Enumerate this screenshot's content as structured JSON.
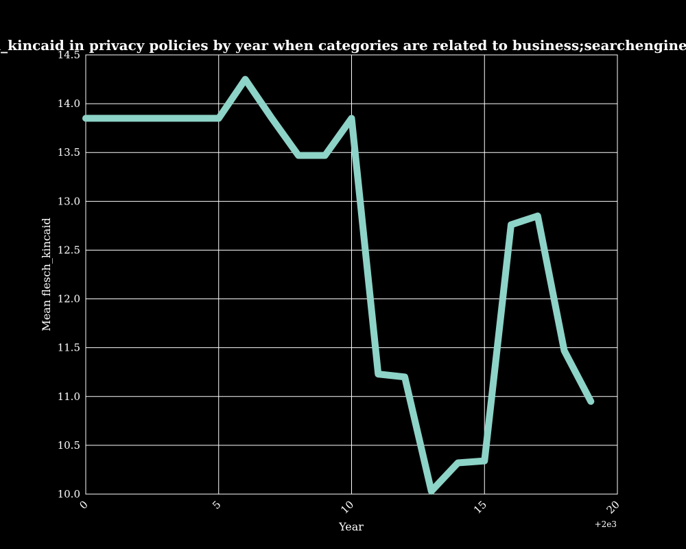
{
  "chart_data": {
    "type": "line",
    "title": "Mean flesch_kincaid in privacy policies by year when categories are related to business;searchenginesandportals",
    "xlabel": "Year",
    "ylabel": "Mean flesch_kincaid",
    "x_offset_label": "+2e3",
    "xlim": [
      0,
      20
    ],
    "ylim": [
      10.0,
      14.5
    ],
    "xticks": [
      "0",
      "5",
      "10",
      "15",
      "20"
    ],
    "yticks": [
      "10.0",
      "10.5",
      "11.0",
      "11.5",
      "12.0",
      "12.5",
      "13.0",
      "13.5",
      "14.0",
      "14.5"
    ],
    "grid": true,
    "series": [
      {
        "color": "#8dd3c7",
        "x": [
          0,
          1,
          2,
          3,
          4,
          5,
          6,
          7,
          8,
          9,
          10,
          11,
          12,
          13,
          14,
          15,
          16,
          17,
          18,
          19
        ],
        "values": [
          13.85,
          13.85,
          13.85,
          13.85,
          13.85,
          13.85,
          14.25,
          13.85,
          13.47,
          13.47,
          13.85,
          11.23,
          11.2,
          10.03,
          10.32,
          10.34,
          12.76,
          12.85,
          11.47,
          10.95
        ]
      }
    ]
  },
  "style": {
    "background": "#000000",
    "grid_color": "#ffffff",
    "text_color": "#ffffff"
  }
}
